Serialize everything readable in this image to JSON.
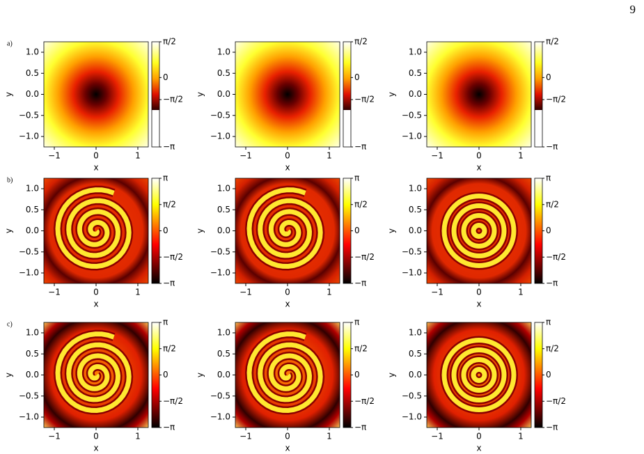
{
  "page_number": "9",
  "axes": {
    "x_label": "x",
    "y_label": "y",
    "x_ticks": [
      "−1",
      "0",
      "1"
    ],
    "y_ticks": [
      "1.0",
      "0.5",
      "0.0",
      "−0.5",
      "−1.0"
    ]
  },
  "rows": [
    {
      "label": "a)",
      "colorbar_ticks": [
        "π/2",
        "0",
        "−π/2",
        "−π"
      ],
      "plots": 3
    },
    {
      "label": "b)",
      "colorbar_ticks": [
        "π",
        "π/2",
        "0",
        "−π/2",
        "−π"
      ],
      "plots": 3
    },
    {
      "label": "c)",
      "colorbar_ticks": [
        "π",
        "π/2",
        "0",
        "−π/2",
        "−π"
      ],
      "plots": 3
    }
  ]
}
